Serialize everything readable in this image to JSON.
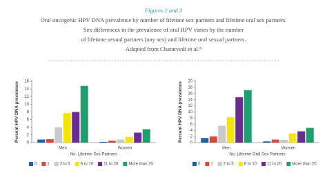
{
  "header": {
    "title": "Figures 2 and 3",
    "lines": [
      "Oral oncogenic HPV DNA prevalence by number of lifetime sex partners and lifetime oral sex partners.",
      "Sex differences in the prevalence of oral HPV varies by the number",
      "of lifetime sexual partners (any sex) and lifetime oral sexual partners.",
      "Adapted from Chaturvedi et al.⁸"
    ]
  },
  "chart_data": [
    {
      "type": "bar",
      "y_label": "Percent HPV DNA prevalence",
      "x_label": "No. Lifetime Sex Partners",
      "categories": [
        "Men",
        "Women"
      ],
      "ylim": [
        0,
        16
      ],
      "yticks": [
        0,
        2,
        4,
        6,
        8,
        10,
        12,
        14,
        16
      ],
      "grid": false,
      "legend": "bottom",
      "series": [
        {
          "name": "0",
          "color": "#1f5fa8",
          "values": [
            0.8,
            0.2
          ]
        },
        {
          "name": "1",
          "color": "#d94a3a",
          "values": [
            0.9,
            0.5
          ]
        },
        {
          "name": "2 to 5",
          "color": "#c9c9c9",
          "values": [
            4.0,
            0.8
          ]
        },
        {
          "name": "6 to 10",
          "color": "#f4e40c",
          "values": [
            7.7,
            1.5
          ]
        },
        {
          "name": "11 to 20",
          "color": "#6b2c8f",
          "values": [
            8.0,
            2.6
          ]
        },
        {
          "name": "More than 20",
          "color": "#1f9e6e",
          "values": [
            14.8,
            3.5
          ]
        }
      ]
    },
    {
      "type": "bar",
      "y_label": "Percent HPV DNA prevalence",
      "x_label": "No. Lifetime Oral Sex Partners",
      "categories": [
        "Men",
        "Women"
      ],
      "ylim": [
        0,
        20
      ],
      "yticks": [
        0,
        2,
        4,
        6,
        8,
        10,
        12,
        14,
        16,
        18,
        20
      ],
      "grid": false,
      "legend": "bottom",
      "series": [
        {
          "name": "0",
          "color": "#1f5fa8",
          "values": [
            1.5,
            0.4
          ]
        },
        {
          "name": "1",
          "color": "#d94a3a",
          "values": [
            2.0,
            1.0
          ]
        },
        {
          "name": "2 to 5",
          "color": "#c9c9c9",
          "values": [
            5.5,
            0.9
          ]
        },
        {
          "name": "6 to 10",
          "color": "#f4e40c",
          "values": [
            8.3,
            3.0
          ]
        },
        {
          "name": "11 to 20",
          "color": "#6b2c8f",
          "values": [
            14.8,
            3.7
          ]
        },
        {
          "name": "More than 20",
          "color": "#1f9e6e",
          "values": [
            17.1,
            4.8
          ]
        }
      ]
    }
  ]
}
